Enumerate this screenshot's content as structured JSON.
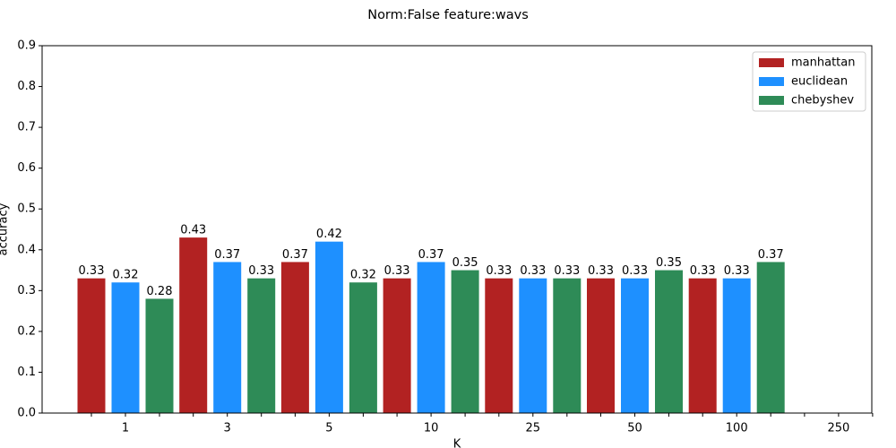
{
  "chart_data": {
    "type": "bar",
    "title": "Norm:False feature:wavs",
    "xlabel": "K",
    "ylabel": "accuracy",
    "categories": [
      "1",
      "3",
      "5",
      "10",
      "25",
      "50",
      "100",
      "250"
    ],
    "series": [
      {
        "name": "manhattan",
        "color": "#b22222",
        "values": [
          0.33,
          0.43,
          0.37,
          0.33,
          0.33,
          0.33,
          0.33,
          null
        ]
      },
      {
        "name": "euclidean",
        "color": "#1e90ff",
        "values": [
          0.32,
          0.37,
          0.42,
          0.37,
          0.33,
          0.33,
          0.33,
          null
        ]
      },
      {
        "name": "chebyshev",
        "color": "#2e8b57",
        "values": [
          0.28,
          0.33,
          0.32,
          0.35,
          0.33,
          0.35,
          0.37,
          null
        ]
      }
    ],
    "ylim": [
      0,
      0.9
    ],
    "yticks": [
      {
        "value": 0,
        "label": "0.0"
      },
      0.1,
      0.2,
      0.3,
      0.4,
      0.5,
      0.6,
      0.7,
      0.8,
      0.9
    ],
    "legend": "upper right",
    "grid": false
  }
}
